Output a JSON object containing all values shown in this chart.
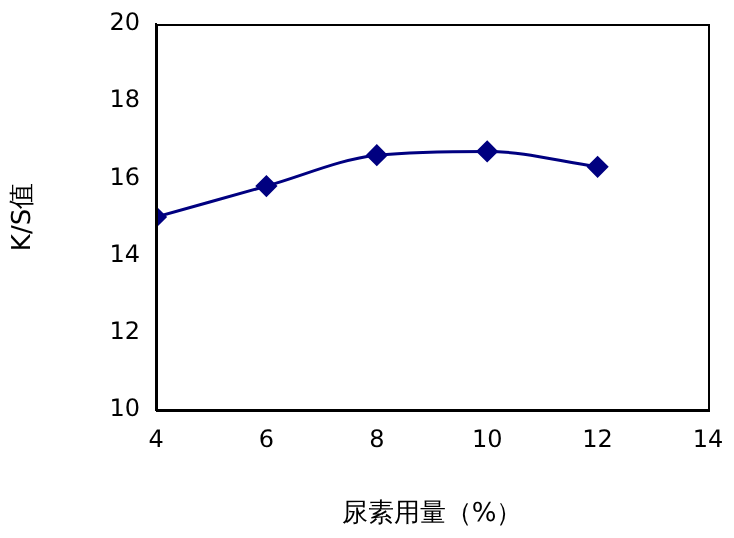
{
  "chart_data": {
    "type": "line",
    "xlabel": "尿素用量（%）",
    "ylabel": "K/S值",
    "x": [
      4,
      6,
      8,
      10,
      12
    ],
    "series": [
      {
        "color": "#000080",
        "values": [
          15.0,
          15.8,
          16.6,
          16.7,
          16.3
        ]
      }
    ],
    "xlim": [
      4,
      14
    ],
    "xticks": [
      4,
      6,
      8,
      10,
      12,
      14
    ],
    "ylim": [
      10,
      20
    ],
    "yticks": [
      10,
      12,
      14,
      16,
      18,
      20
    ],
    "marker": "diamond",
    "grid": false,
    "legend": false
  }
}
